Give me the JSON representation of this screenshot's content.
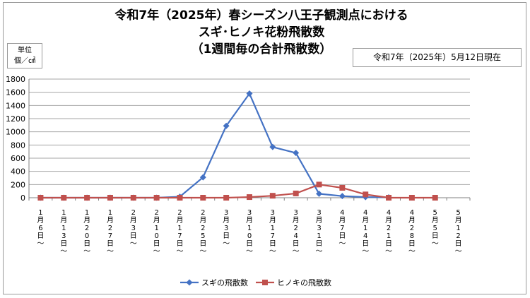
{
  "title_lines": [
    "令和7年（2025年）春シーズン八王子観測点における",
    "スギ･ヒノキ花粉飛散数",
    "（1週間毎の合計飛散数）"
  ],
  "unit": {
    "line1": "単位",
    "line2": "個／㎠"
  },
  "date_note": "令和7年（2025年）5月12日現在",
  "chart_data": {
    "type": "line",
    "title": "スギ･ヒノキ花粉飛散数（1週間毎の合計飛散数）",
    "ylabel": "個／㎠",
    "ylim": [
      0,
      1800
    ],
    "yticks": [
      0,
      200,
      400,
      600,
      800,
      1000,
      1200,
      1400,
      1600,
      1800
    ],
    "grid": true,
    "categories": [
      "1月6日～",
      "1月13日～",
      "1月20日～",
      "1月27日～",
      "2月3日～",
      "2月10日～",
      "2月17日～",
      "2月25日～",
      "3月3日～",
      "3月10日～",
      "3月17日～",
      "3月24日～",
      "3月31日～",
      "4月7日～",
      "4月14日～",
      "4月21日～",
      "4月28日～",
      "5月5日～",
      "5月12日～"
    ],
    "series": [
      {
        "name": "スギの飛散数",
        "color": "#4472C4",
        "marker": "diamond",
        "values": [
          0,
          0,
          0,
          0,
          0,
          0,
          15,
          310,
          1090,
          1580,
          770,
          680,
          60,
          25,
          10,
          5,
          null,
          null,
          null
        ]
      },
      {
        "name": "ヒノキの飛散数",
        "color": "#C0504D",
        "marker": "square",
        "values": [
          0,
          0,
          0,
          0,
          0,
          0,
          0,
          0,
          0,
          10,
          30,
          65,
          200,
          150,
          50,
          0,
          0,
          0,
          null
        ]
      }
    ],
    "legend": "bottom"
  }
}
